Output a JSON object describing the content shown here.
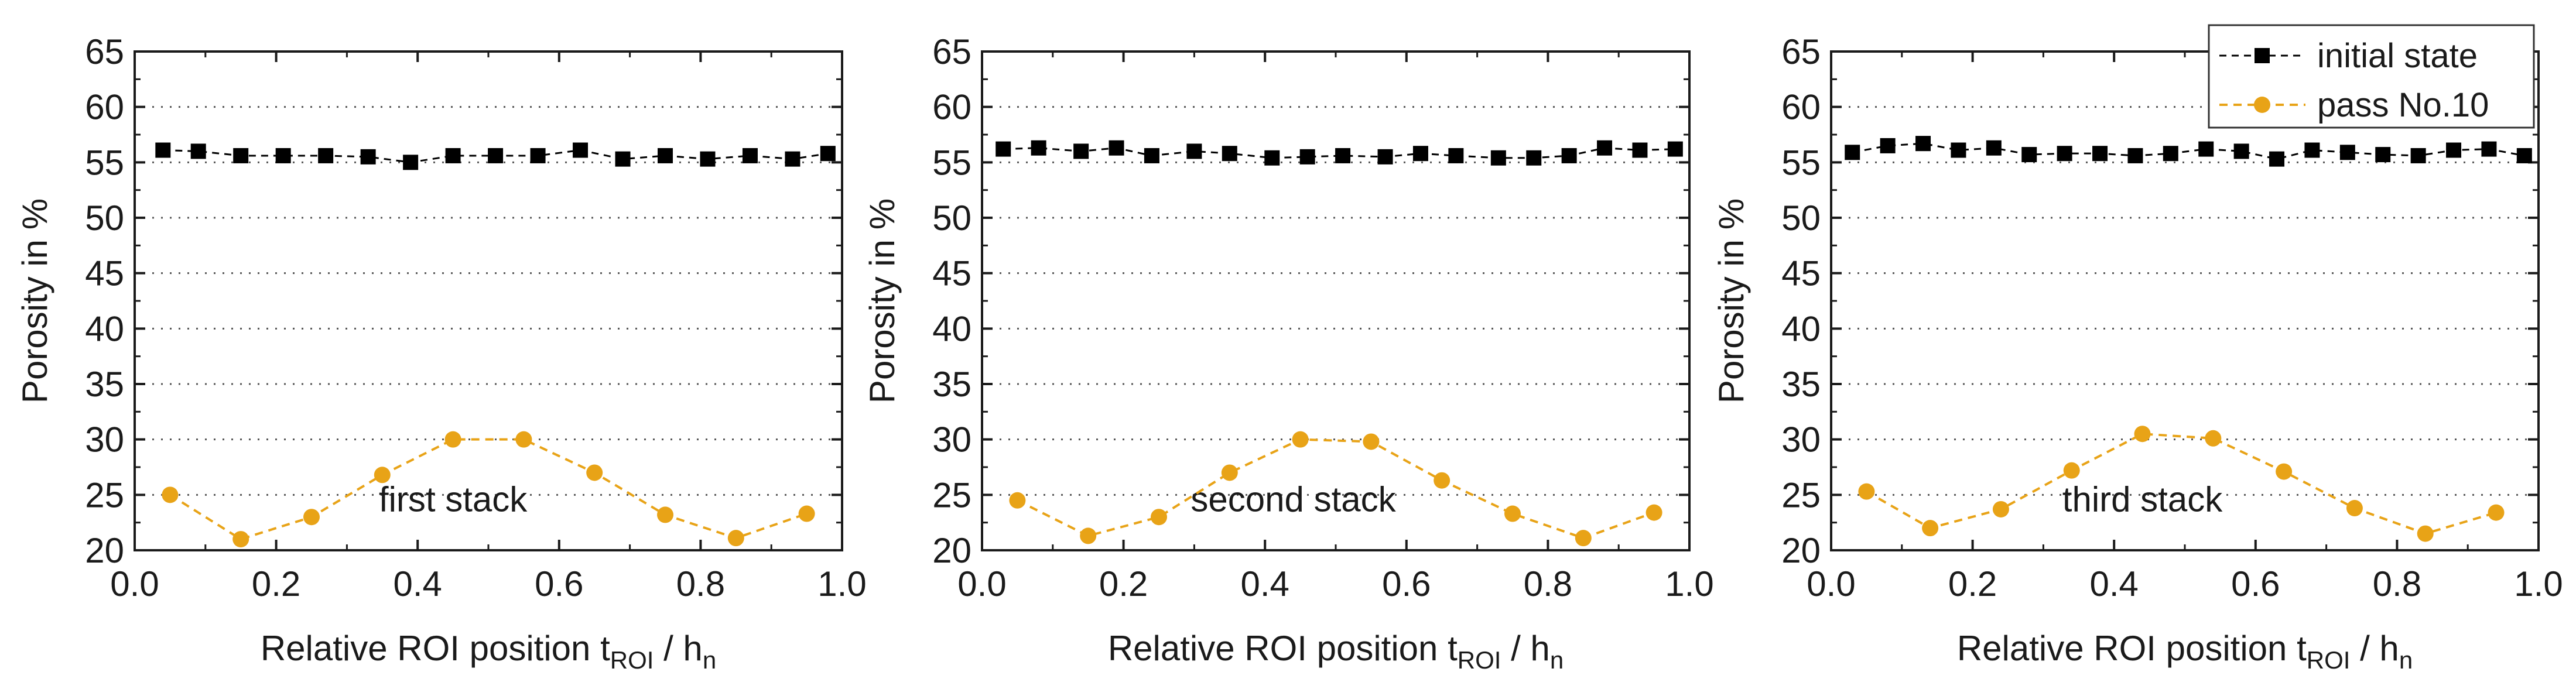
{
  "figure": {
    "legend": {
      "entries": [
        {
          "label": "initial state",
          "series": "initial",
          "marker": "square",
          "color": "#000000"
        },
        {
          "label": "pass No.10",
          "series": "pass10",
          "marker": "circle",
          "color": "#e8a317"
        }
      ]
    }
  },
  "chart_data": [
    {
      "type": "line",
      "xlabel": {
        "main": "Relative ROI position t",
        "sub1": "ROI",
        "mid": " / h",
        "sub2": "n"
      },
      "ylabel": "Porosity in %",
      "xlim": [
        0.0,
        1.0
      ],
      "ylim": [
        20,
        65
      ],
      "xticks": [
        "0.0",
        "0.2",
        "0.4",
        "0.6",
        "0.8",
        "1.0"
      ],
      "yticks": [
        "20",
        "25",
        "30",
        "35",
        "40",
        "45",
        "50",
        "55",
        "60",
        "65"
      ],
      "grid": "horizontal dotted",
      "annotation": "first stack",
      "series": [
        {
          "name": "initial state",
          "x": [
            0.04,
            0.09,
            0.15,
            0.21,
            0.27,
            0.33,
            0.39,
            0.45,
            0.51,
            0.57,
            0.63,
            0.69,
            0.75,
            0.81,
            0.87,
            0.93,
            0.98
          ],
          "y": [
            56.1,
            56.0,
            55.6,
            55.6,
            55.6,
            55.5,
            55.0,
            55.6,
            55.6,
            55.6,
            56.1,
            55.3,
            55.6,
            55.3,
            55.6,
            55.3,
            55.8
          ]
        },
        {
          "name": "pass No.10",
          "x": [
            0.05,
            0.15,
            0.25,
            0.35,
            0.45,
            0.55,
            0.65,
            0.75,
            0.85,
            0.95
          ],
          "y": [
            25.0,
            21.0,
            23.0,
            26.8,
            30.0,
            30.0,
            27.0,
            23.2,
            21.1,
            23.3
          ]
        }
      ]
    },
    {
      "type": "line",
      "xlabel": {
        "main": "Relative ROI position t",
        "sub1": "ROI",
        "mid": " / h",
        "sub2": "n"
      },
      "ylabel": "Porosity in %",
      "xlim": [
        0.0,
        1.0
      ],
      "ylim": [
        20,
        65
      ],
      "xticks": [
        "0.0",
        "0.2",
        "0.4",
        "0.6",
        "0.8",
        "1.0"
      ],
      "yticks": [
        "20",
        "25",
        "30",
        "35",
        "40",
        "45",
        "50",
        "55",
        "60",
        "65"
      ],
      "grid": "horizontal dotted",
      "annotation": "second stack",
      "series": [
        {
          "name": "initial state",
          "x": [
            0.03,
            0.08,
            0.14,
            0.19,
            0.24,
            0.3,
            0.35,
            0.41,
            0.46,
            0.51,
            0.57,
            0.62,
            0.67,
            0.73,
            0.78,
            0.83,
            0.88,
            0.93,
            0.98
          ],
          "y": [
            56.2,
            56.3,
            56.0,
            56.3,
            55.6,
            56.0,
            55.8,
            55.4,
            55.5,
            55.6,
            55.5,
            55.8,
            55.6,
            55.4,
            55.4,
            55.6,
            56.3,
            56.1,
            56.2
          ]
        },
        {
          "name": "pass No.10",
          "x": [
            0.05,
            0.15,
            0.25,
            0.35,
            0.45,
            0.55,
            0.65,
            0.75,
            0.85,
            0.95
          ],
          "y": [
            24.5,
            21.3,
            23.0,
            27.0,
            30.0,
            29.8,
            26.3,
            23.3,
            21.1,
            23.4
          ]
        }
      ]
    },
    {
      "type": "line",
      "xlabel": {
        "main": "Relative ROI position t",
        "sub1": "ROI",
        "mid": " / h",
        "sub2": "n"
      },
      "ylabel": "Porosity in %",
      "xlim": [
        0.0,
        1.0
      ],
      "ylim": [
        20,
        65
      ],
      "xticks": [
        "0.0",
        "0.2",
        "0.4",
        "0.6",
        "0.8",
        "1.0"
      ],
      "yticks": [
        "20",
        "25",
        "30",
        "35",
        "40",
        "45",
        "50",
        "55",
        "60",
        "65"
      ],
      "grid": "horizontal dotted",
      "annotation": "third stack",
      "legend_position": "top-right",
      "series": [
        {
          "name": "initial state",
          "x": [
            0.03,
            0.08,
            0.13,
            0.18,
            0.23,
            0.28,
            0.33,
            0.38,
            0.43,
            0.48,
            0.53,
            0.58,
            0.63,
            0.68,
            0.73,
            0.78,
            0.83,
            0.88,
            0.93,
            0.98
          ],
          "y": [
            55.9,
            56.5,
            56.7,
            56.1,
            56.3,
            55.7,
            55.8,
            55.8,
            55.6,
            55.8,
            56.2,
            56.0,
            55.3,
            56.1,
            55.9,
            55.7,
            55.6,
            56.1,
            56.2,
            55.6
          ]
        },
        {
          "name": "pass No.10",
          "x": [
            0.05,
            0.14,
            0.24,
            0.34,
            0.44,
            0.54,
            0.64,
            0.74,
            0.84,
            0.94
          ],
          "y": [
            25.3,
            22.0,
            23.7,
            27.2,
            30.5,
            30.1,
            27.1,
            23.8,
            21.5,
            23.4
          ]
        }
      ]
    }
  ]
}
